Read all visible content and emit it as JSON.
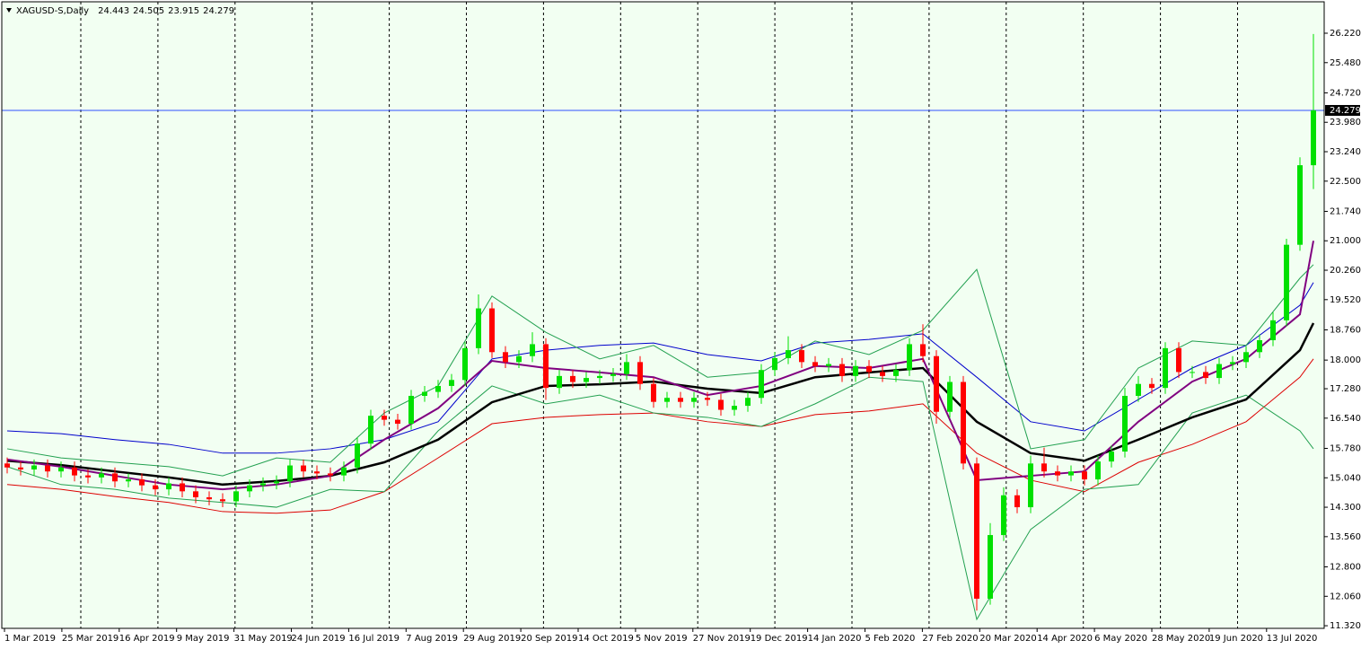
{
  "chart_data": {
    "type": "candlestick",
    "symbol_label": "XAGUSD-S,Daily",
    "header_values": [
      {
        "value": 24.443,
        "label": "24.443"
      },
      {
        "value": 24.505,
        "label": "24.505"
      },
      {
        "value": 23.915,
        "label": "23.915"
      },
      {
        "value": 24.279,
        "label": "24.279"
      }
    ],
    "current_price": {
      "value": 24.279,
      "label": "24.279"
    },
    "current_price_color": "#3050ff",
    "up_color": "#00e000",
    "down_color": "#ff0000",
    "background": "#f2fff2",
    "ylim": [
      11.254,
      27.01
    ],
    "yticks": [
      {
        "value": 11.32,
        "label": "11.320"
      },
      {
        "value": 12.06,
        "label": "12.060"
      },
      {
        "value": 12.8,
        "label": "12.800"
      },
      {
        "value": 13.56,
        "label": "13.560"
      },
      {
        "value": 14.3,
        "label": "14.300"
      },
      {
        "value": 15.04,
        "label": "15.040"
      },
      {
        "value": 15.78,
        "label": "15.780"
      },
      {
        "value": 16.54,
        "label": "16.540"
      },
      {
        "value": 17.28,
        "label": "17.280"
      },
      {
        "value": 18.0,
        "label": "18.000"
      },
      {
        "value": 18.76,
        "label": "18.760"
      },
      {
        "value": 19.52,
        "label": "19.520"
      },
      {
        "value": 20.26,
        "label": "20.260"
      },
      {
        "value": 21.0,
        "label": "21.000"
      },
      {
        "value": 21.74,
        "label": "21.740"
      },
      {
        "value": 22.5,
        "label": "22.500"
      },
      {
        "value": 23.24,
        "label": "23.240"
      },
      {
        "value": 23.98,
        "label": "23.980"
      },
      {
        "value": 24.72,
        "label": "24.720"
      },
      {
        "value": 25.48,
        "label": "25.480"
      },
      {
        "value": 26.22,
        "label": "26.220"
      }
    ],
    "date_labels": [
      "1 Mar 2019",
      "25 Mar 2019",
      "16 Apr 2019",
      "9 May 2019",
      "31 May 2019",
      "24 Jun 2019",
      "16 Jul 2019",
      "7 Aug 2019",
      "29 Aug 2019",
      "20 Sep 2019",
      "14 Oct 2019",
      "5 Nov 2019",
      "27 Nov 2019",
      "19 Dec 2019",
      "14 Jan 2020",
      "5 Feb 2020",
      "27 Feb 2020",
      "20 Mar 2020",
      "14 Apr 2020",
      "6 May 2020",
      "28 May 2020",
      "19 Jun 2020",
      "13 Jul 2020"
    ],
    "open": [
      15.4,
      15.3,
      15.25,
      15.35,
      15.2,
      15.3,
      15.1,
      15.05,
      15.15,
      14.95,
      15.0,
      14.85,
      14.75,
      14.9,
      14.7,
      14.55,
      14.5,
      14.45,
      14.7,
      14.85,
      14.9,
      14.95,
      15.35,
      15.2,
      15.15,
      15.1,
      15.3,
      15.9,
      16.6,
      16.5,
      16.4,
      17.1,
      17.2,
      17.35,
      17.5,
      18.3,
      19.3,
      18.2,
      17.95,
      18.1,
      18.4,
      17.3,
      17.6,
      17.45,
      17.55,
      17.6,
      17.65,
      17.95,
      17.4,
      16.95,
      17.05,
      16.95,
      17.05,
      17.0,
      16.75,
      16.85,
      17.05,
      17.75,
      18.05,
      18.25,
      17.95,
      17.85,
      17.9,
      17.6,
      17.85,
      17.7,
      17.6,
      17.75,
      18.4,
      18.1,
      16.7,
      17.45,
      15.4,
      12.0,
      13.6,
      14.6,
      14.3,
      15.4,
      15.2,
      15.1,
      15.2,
      15.0,
      15.45,
      15.7,
      17.1,
      17.4,
      17.3,
      18.3,
      17.7,
      17.7,
      17.55,
      17.9,
      17.95,
      18.2,
      18.5,
      19.0,
      20.9,
      22.9
    ],
    "high": [
      15.55,
      15.45,
      15.5,
      15.5,
      15.45,
      15.45,
      15.25,
      15.3,
      15.3,
      15.15,
      15.15,
      15.0,
      15.05,
      15.05,
      14.85,
      14.7,
      14.65,
      14.85,
      15.0,
      15.05,
      15.1,
      15.5,
      15.5,
      15.35,
      15.3,
      15.45,
      16.05,
      16.75,
      16.75,
      16.65,
      17.25,
      17.35,
      17.5,
      17.65,
      18.45,
      19.65,
      19.45,
      18.35,
      18.25,
      18.7,
      18.55,
      17.75,
      17.75,
      17.7,
      17.75,
      17.8,
      18.15,
      18.1,
      17.55,
      17.2,
      17.2,
      17.2,
      17.2,
      17.15,
      17.0,
      17.2,
      17.9,
      18.2,
      18.6,
      18.4,
      18.1,
      18.05,
      18.05,
      18.0,
      18.0,
      17.85,
      17.9,
      18.55,
      18.9,
      18.25,
      17.6,
      17.6,
      15.55,
      13.9,
      14.8,
      14.75,
      15.6,
      15.8,
      15.35,
      15.35,
      15.35,
      15.6,
      15.85,
      17.3,
      17.6,
      17.55,
      18.45,
      18.45,
      17.85,
      17.85,
      18.05,
      18.1,
      18.35,
      18.65,
      19.2,
      21.05,
      23.1,
      26.2
    ],
    "low": [
      15.15,
      15.1,
      15.1,
      15.05,
      15.05,
      14.95,
      14.9,
      14.9,
      14.8,
      14.8,
      14.7,
      14.6,
      14.6,
      14.55,
      14.4,
      14.35,
      14.3,
      14.3,
      14.55,
      14.7,
      14.75,
      14.8,
      15.05,
      15.0,
      14.95,
      14.95,
      15.15,
      15.75,
      16.35,
      16.25,
      16.25,
      16.95,
      17.05,
      17.2,
      17.35,
      18.15,
      18.05,
      17.8,
      17.8,
      17.95,
      17.0,
      17.15,
      17.3,
      17.3,
      17.4,
      17.45,
      17.5,
      17.25,
      16.8,
      16.8,
      16.8,
      16.8,
      16.85,
      16.6,
      16.6,
      16.7,
      16.9,
      17.6,
      17.9,
      17.8,
      17.7,
      17.7,
      17.45,
      17.45,
      17.55,
      17.45,
      17.45,
      17.6,
      17.95,
      16.4,
      16.55,
      15.25,
      11.7,
      11.85,
      13.45,
      14.15,
      14.15,
      15.05,
      14.95,
      14.95,
      14.85,
      14.85,
      15.3,
      15.55,
      16.95,
      17.15,
      17.15,
      17.55,
      17.55,
      17.4,
      17.4,
      17.75,
      17.8,
      18.05,
      18.35,
      18.85,
      20.75,
      22.3
    ],
    "close": [
      15.3,
      15.25,
      15.35,
      15.2,
      15.3,
      15.1,
      15.05,
      15.15,
      14.95,
      15.0,
      14.85,
      14.75,
      14.9,
      14.7,
      14.55,
      14.5,
      14.45,
      14.7,
      14.85,
      14.9,
      14.95,
      15.35,
      15.2,
      15.15,
      15.1,
      15.3,
      15.9,
      16.6,
      16.5,
      16.4,
      17.1,
      17.2,
      17.35,
      17.5,
      18.3,
      19.3,
      18.2,
      17.95,
      18.1,
      18.4,
      17.3,
      17.6,
      17.45,
      17.55,
      17.6,
      17.65,
      17.95,
      17.4,
      16.95,
      17.05,
      16.95,
      17.05,
      17.0,
      16.75,
      16.85,
      17.05,
      17.75,
      18.05,
      18.25,
      17.95,
      17.85,
      17.9,
      17.6,
      17.85,
      17.7,
      17.6,
      17.75,
      18.4,
      18.1,
      16.7,
      17.45,
      15.4,
      12.0,
      13.6,
      14.6,
      14.3,
      15.4,
      15.2,
      15.1,
      15.2,
      15.0,
      15.45,
      15.7,
      17.1,
      17.4,
      17.3,
      18.3,
      17.7,
      17.7,
      17.55,
      17.9,
      17.95,
      18.2,
      18.5,
      19.0,
      20.9,
      22.9,
      24.279
    ],
    "line_x": [
      0,
      4,
      8,
      12,
      16,
      20,
      24,
      28,
      32,
      36,
      40,
      44,
      48,
      52,
      56,
      60,
      64,
      68,
      72,
      76,
      80,
      84,
      88,
      92,
      96,
      97
    ],
    "indicators": [
      {
        "color": "#0000cc",
        "width": 1,
        "values": [
          16.22,
          16.15,
          16.0,
          15.88,
          15.66,
          15.66,
          15.77,
          16.0,
          16.45,
          18.03,
          18.25,
          18.37,
          18.43,
          18.14,
          17.98,
          18.43,
          18.52,
          18.66,
          17.57,
          16.45,
          16.22,
          17.01,
          17.8,
          18.37,
          19.38,
          19.95
        ]
      },
      {
        "color": "#dd0000",
        "width": 1,
        "values": [
          14.87,
          14.75,
          14.57,
          14.42,
          14.19,
          14.15,
          14.23,
          14.69,
          15.54,
          16.4,
          16.56,
          16.63,
          16.67,
          16.45,
          16.33,
          16.63,
          16.72,
          16.9,
          15.66,
          14.98,
          14.69,
          15.43,
          15.88,
          16.45,
          17.57,
          18.03
        ]
      },
      {
        "color": "#22a050",
        "width": 1,
        "values": [
          15.77,
          15.54,
          15.43,
          15.32,
          15.09,
          15.54,
          15.43,
          16.67,
          17.35,
          19.61,
          18.7,
          18.03,
          18.37,
          17.57,
          17.69,
          18.48,
          18.14,
          18.75,
          20.28,
          15.77,
          16.0,
          17.8,
          18.48,
          18.37,
          20.06,
          20.4
        ]
      },
      {
        "color": "#22a050",
        "width": 1,
        "values": [
          15.32,
          14.87,
          14.75,
          14.53,
          14.42,
          14.3,
          14.75,
          14.69,
          16.22,
          17.35,
          16.9,
          17.12,
          16.67,
          16.56,
          16.33,
          16.9,
          17.57,
          17.46,
          11.48,
          13.74,
          14.75,
          14.87,
          16.67,
          17.12,
          16.22,
          15.77
        ]
      },
      {
        "color": "#000000",
        "width": 2.5,
        "values": [
          15.47,
          15.36,
          15.2,
          15.05,
          14.87,
          14.96,
          15.09,
          15.43,
          16.0,
          16.94,
          17.35,
          17.39,
          17.46,
          17.28,
          17.17,
          17.57,
          17.69,
          17.8,
          16.45,
          15.66,
          15.47,
          16.0,
          16.56,
          17.01,
          18.25,
          18.93
        ]
      },
      {
        "color": "#800080",
        "width": 2,
        "values": [
          15.5,
          15.32,
          15.09,
          14.87,
          14.75,
          14.87,
          15.09,
          16.0,
          16.79,
          17.98,
          17.8,
          17.69,
          17.57,
          17.12,
          17.35,
          17.85,
          17.8,
          18.03,
          14.98,
          15.09,
          15.2,
          16.45,
          17.46,
          18.03,
          19.15,
          21.0
        ]
      }
    ]
  }
}
